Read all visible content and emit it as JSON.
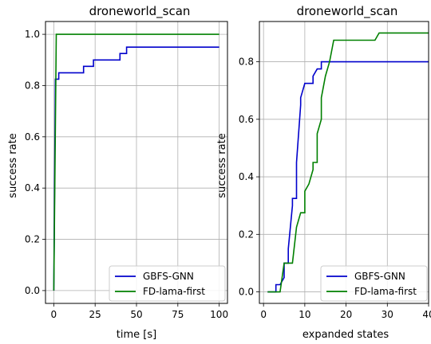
{
  "chart_data": [
    {
      "type": "line",
      "title": "droneworld_scan",
      "xlabel": "time [s]",
      "ylabel": "success rate",
      "xlim": [
        -5,
        105
      ],
      "ylim": [
        -0.05,
        1.05
      ],
      "xticks": [
        0,
        25,
        50,
        75,
        100
      ],
      "xtick_labels": [
        "0",
        "25",
        "50",
        "75",
        "100"
      ],
      "yticks": [
        0.0,
        0.2,
        0.4,
        0.6,
        0.8,
        1.0
      ],
      "ytick_labels": [
        "0.0",
        "0.2",
        "0.4",
        "0.6",
        "0.8",
        "1.0"
      ],
      "grid": true,
      "legend_position": "lower-right",
      "series": [
        {
          "name": "GBFS-GNN",
          "color": "#0000cc",
          "x": [
            0,
            1,
            1,
            3,
            3,
            18,
            18,
            24,
            24,
            40,
            40,
            44,
            44,
            100
          ],
          "y": [
            0,
            0.825,
            0.825,
            0.825,
            0.85,
            0.85,
            0.875,
            0.875,
            0.9,
            0.9,
            0.925,
            0.925,
            0.95,
            0.95
          ]
        },
        {
          "name": "FD-lama-first",
          "color": "#008000",
          "x": [
            0,
            1.5,
            100
          ],
          "y": [
            0,
            1.0,
            1.0
          ]
        }
      ]
    },
    {
      "type": "line",
      "title": "droneworld_scan",
      "xlabel": "expanded states",
      "ylabel": "success rate",
      "xlim": [
        -1,
        40
      ],
      "ylim": [
        -0.04,
        0.94
      ],
      "xticks": [
        0,
        10,
        20,
        30,
        40
      ],
      "xtick_labels": [
        "0",
        "10",
        "20",
        "30",
        "40"
      ],
      "yticks": [
        0.0,
        0.2,
        0.4,
        0.6,
        0.8
      ],
      "ytick_labels": [
        "0.0",
        "0.2",
        "0.4",
        "0.6",
        "0.8"
      ],
      "grid": true,
      "legend_position": "lower-right",
      "series": [
        {
          "name": "GBFS-GNN",
          "color": "#0000cc",
          "x": [
            1,
            3,
            3,
            4,
            5,
            5,
            6,
            6,
            7,
            7,
            8,
            8,
            9,
            9,
            10,
            10,
            11,
            12,
            12,
            13,
            13,
            14,
            14,
            15,
            40
          ],
          "y": [
            0,
            0,
            0.025,
            0.025,
            0.05,
            0.1,
            0.1,
            0.15,
            0.3,
            0.325,
            0.325,
            0.45,
            0.65,
            0.675,
            0.725,
            0.725,
            0.725,
            0.725,
            0.75,
            0.775,
            0.775,
            0.775,
            0.8,
            0.8,
            0.8
          ]
        },
        {
          "name": "FD-lama-first",
          "color": "#008000",
          "x": [
            1,
            4,
            5,
            5,
            7,
            8,
            8,
            9,
            9,
            10,
            10,
            11,
            12,
            12,
            13,
            13,
            14,
            14,
            15,
            16,
            17,
            18,
            27,
            28,
            40
          ],
          "y": [
            0,
            0,
            0.1,
            0.1,
            0.1,
            0.225,
            0.225,
            0.275,
            0.275,
            0.275,
            0.35,
            0.375,
            0.425,
            0.45,
            0.45,
            0.55,
            0.6,
            0.675,
            0.75,
            0.8,
            0.875,
            0.875,
            0.875,
            0.9,
            0.9
          ]
        }
      ]
    }
  ]
}
